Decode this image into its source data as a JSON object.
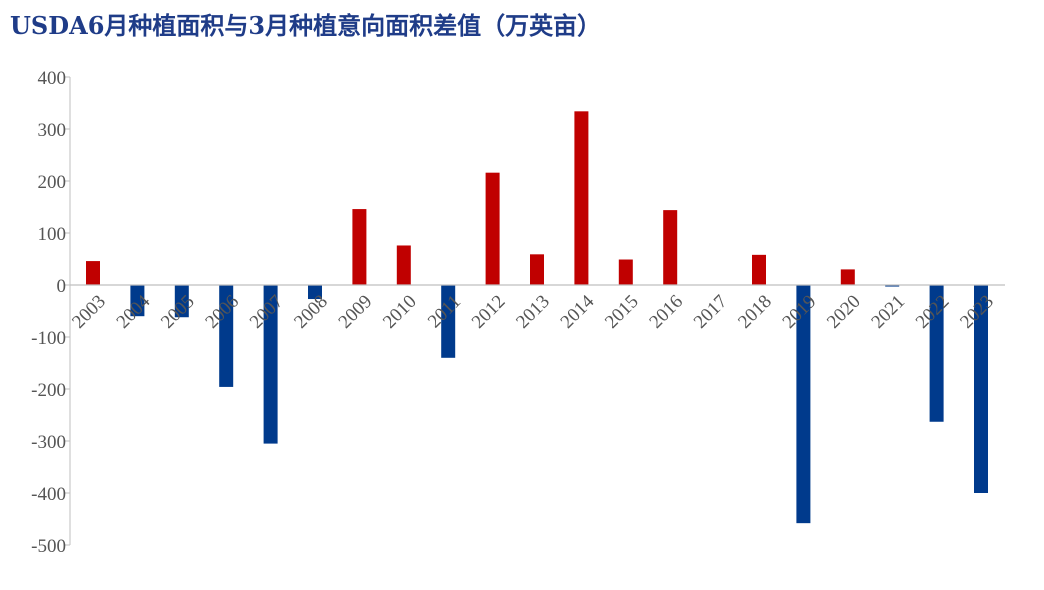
{
  "chart_data": {
    "type": "bar",
    "title": "USDA6月种植面积与3月种植意向面积差值（万英亩）",
    "xlabel": "",
    "ylabel": "",
    "ylim": [
      -500,
      400
    ],
    "yticks": [
      400,
      300,
      200,
      100,
      0,
      -100,
      -200,
      -300,
      -400,
      -500
    ],
    "categories": [
      "2003",
      "2004",
      "2005",
      "2006",
      "2007",
      "2008",
      "2009",
      "2010",
      "2011",
      "2012",
      "2013",
      "2014",
      "2015",
      "2016",
      "2017",
      "2018",
      "2019",
      "2020",
      "2021",
      "2022",
      "2023"
    ],
    "values": [
      46,
      -60,
      -62,
      -196,
      -305,
      -27,
      146,
      76,
      -140,
      216,
      59,
      334,
      49,
      144,
      0,
      58,
      -458,
      30,
      -3,
      -263,
      -400
    ],
    "grid": false,
    "legend": "none",
    "colors": {
      "positive": "#c00000",
      "negative": "#003a8c",
      "axis": "#bfbfbf",
      "title": "#1f3c88"
    }
  }
}
